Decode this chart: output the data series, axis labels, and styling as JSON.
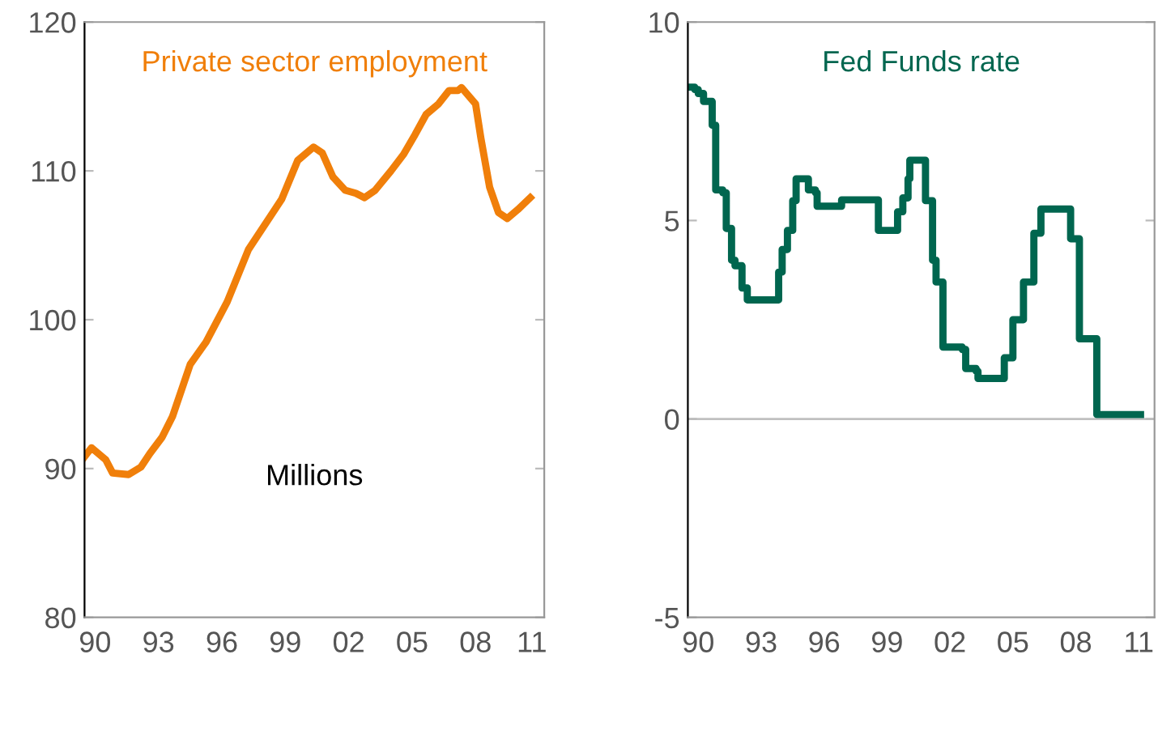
{
  "chart_data": [
    {
      "type": "line",
      "title": "Private sector employment",
      "annotations": [
        "Millions"
      ],
      "xlim": [
        "1990-01",
        "2011-10"
      ],
      "xticks": [
        {
          "value": "1990-07",
          "label": "90"
        },
        {
          "value": "1993-07",
          "label": "93"
        },
        {
          "value": "1996-07",
          "label": "96"
        },
        {
          "value": "1999-07",
          "label": "99"
        },
        {
          "value": "2002-07",
          "label": "02"
        },
        {
          "value": "2005-07",
          "label": "05"
        },
        {
          "value": "2008-07",
          "label": "08"
        },
        {
          "value": "2011-03",
          "label": "11"
        }
      ],
      "ylim": [
        80,
        120
      ],
      "yticks": [
        80,
        90,
        100,
        110,
        120
      ],
      "grid": false,
      "legend": false,
      "series": [
        {
          "color": "#f07f0a",
          "x": [
            "1990-01",
            "1990-05",
            "1991-01",
            "1991-05",
            "1992-02",
            "1992-09",
            "1993-02",
            "1993-09",
            "1994-03",
            "1995-01",
            "1995-10",
            "1996-10",
            "1997-10",
            "1999-05",
            "2000-02",
            "2000-11",
            "2001-04",
            "2001-10",
            "2002-05",
            "2002-11",
            "2003-04",
            "2003-10",
            "2004-07",
            "2005-02",
            "2005-08",
            "2006-03",
            "2006-10",
            "2007-04",
            "2007-09",
            "2007-11",
            "2008-07",
            "2008-10",
            "2009-03",
            "2009-08",
            "2010-01",
            "2010-07",
            "2011-02"
          ],
          "values": [
            90.8,
            91.4,
            90.6,
            89.7,
            89.6,
            90.1,
            91.0,
            92.1,
            93.5,
            97.0,
            98.5,
            101.2,
            104.7,
            108.1,
            110.7,
            111.6,
            111.2,
            109.6,
            108.7,
            108.5,
            108.2,
            108.7,
            110.0,
            111.1,
            112.3,
            113.8,
            114.5,
            115.4,
            115.4,
            115.6,
            114.5,
            112.2,
            108.9,
            107.2,
            106.8,
            107.4,
            108.2
          ]
        }
      ]
    },
    {
      "type": "step",
      "title": "Fed Funds rate",
      "xlim": [
        "1990-01",
        "2012-04"
      ],
      "xticks": [
        {
          "value": "1990-07",
          "label": "90"
        },
        {
          "value": "1993-07",
          "label": "93"
        },
        {
          "value": "1996-07",
          "label": "96"
        },
        {
          "value": "1999-07",
          "label": "99"
        },
        {
          "value": "2002-07",
          "label": "02"
        },
        {
          "value": "2005-07",
          "label": "05"
        },
        {
          "value": "2008-07",
          "label": "08"
        },
        {
          "value": "2011-07",
          "label": "11"
        }
      ],
      "ylim": [
        -5,
        10
      ],
      "yticks": [
        -5,
        0,
        5,
        10
      ],
      "grid": false,
      "legend": false,
      "ref_lines": [
        {
          "axis": "y",
          "value": 0,
          "color": "#c0c0c0"
        }
      ],
      "series": [
        {
          "color": "#00664f",
          "x": [
            "1990-01",
            "1990-05",
            "1990-07",
            "1990-10",
            "1991-03",
            "1991-05",
            "1991-09",
            "1991-11",
            "1992-02",
            "1992-04",
            "1992-08",
            "1992-11",
            "1994-03",
            "1994-05",
            "1994-07",
            "1994-10",
            "1995-01",
            "1995-03",
            "1995-08",
            "1995-10",
            "1996-02",
            "1996-03",
            "1997-04",
            "1997-05",
            "1998-10",
            "1999-02",
            "1999-08",
            "2000-01",
            "2000-04",
            "2000-07",
            "2000-08",
            "2001-04",
            "2001-05",
            "2001-09",
            "2001-11",
            "2002-03",
            "2003-02",
            "2003-04",
            "2003-10",
            "2003-11",
            "2004-10",
            "2005-02",
            "2005-07",
            "2006-01",
            "2006-07",
            "2006-11",
            "2008-02",
            "2008-04",
            "2008-09",
            "2009-03",
            "2009-07",
            "2011-08"
          ],
          "values": [
            8.36,
            8.3,
            8.2,
            8.0,
            7.4,
            5.77,
            5.7,
            4.8,
            4.0,
            3.86,
            3.3,
            3.0,
            3.0,
            3.7,
            4.27,
            4.75,
            5.5,
            6.05,
            6.05,
            5.77,
            5.7,
            5.36,
            5.36,
            5.52,
            5.52,
            4.75,
            4.75,
            5.22,
            5.57,
            6.05,
            6.52,
            6.52,
            5.5,
            4.0,
            3.45,
            1.81,
            1.75,
            1.27,
            1.2,
            1.02,
            1.02,
            1.54,
            2.5,
            3.45,
            4.68,
            5.29,
            5.29,
            4.54,
            2.02,
            2.02,
            0.11,
            0.11
          ]
        }
      ]
    }
  ]
}
